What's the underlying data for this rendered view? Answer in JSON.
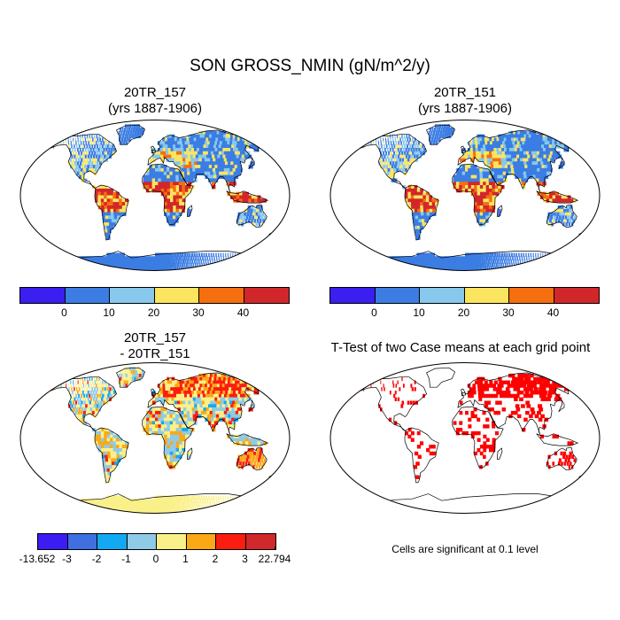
{
  "title": "SON GROSS_NMIN (gN/m^2/y)",
  "panels": {
    "top_left": {
      "title": "20TR_157\n(yrs 1887-1906)"
    },
    "top_right": {
      "title": "20TR_151\n(yrs 1887-1906)"
    },
    "bottom_left": {
      "title": "20TR_157\n- 20TR_151"
    },
    "bottom_right": {
      "title": "T-Test of two Case means at each grid point"
    }
  },
  "colorbar_top": {
    "colors": [
      "#3a1ff0",
      "#3b7de3",
      "#87c8ec",
      "#fbe45e",
      "#f56f0f",
      "#d2272a"
    ],
    "labels": [
      "0",
      "10",
      "20",
      "30",
      "40"
    ]
  },
  "colorbar_bottom": {
    "colors": [
      "#3b1cf2",
      "#3f6fe0",
      "#12a9f2",
      "#8fcbe7",
      "#faf08a",
      "#faa816",
      "#fb1d10",
      "#d1282b"
    ],
    "labels": [
      "-13.652",
      "-3",
      "-2",
      "-1",
      "0",
      "1",
      "2",
      "3",
      "22.794"
    ]
  },
  "note": "Cells are significant at 0.1 level",
  "significance_color": "#ff0000"
}
